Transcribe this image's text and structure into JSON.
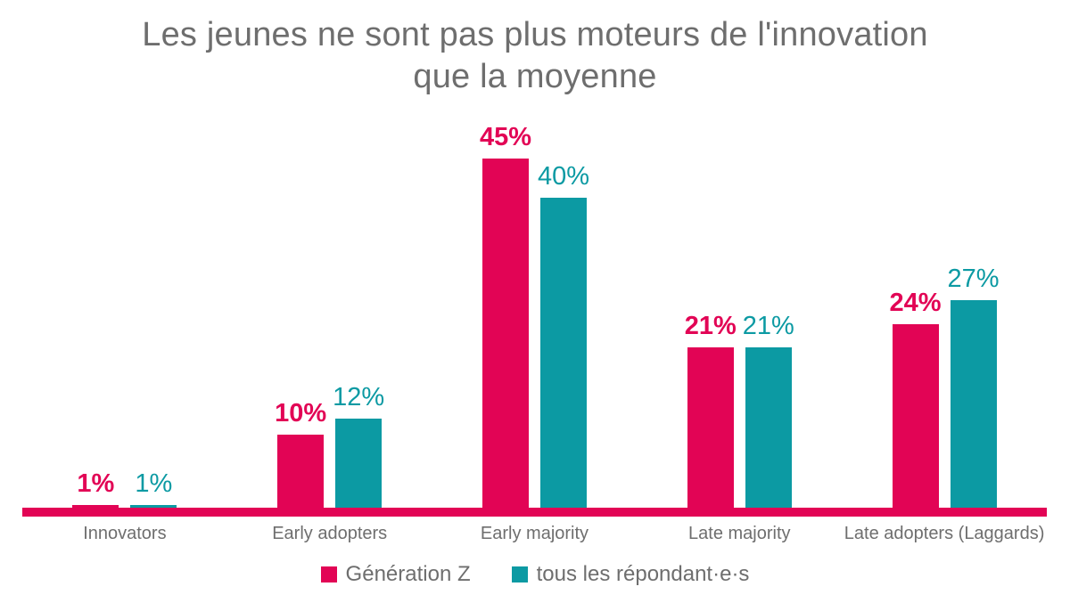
{
  "title_lines": [
    "Les jeunes ne sont pas plus moteurs de l'innovation",
    "que la moyenne"
  ],
  "chart_data": {
    "type": "bar",
    "title": "Les jeunes ne sont pas plus moteurs de l'innovation que la moyenne",
    "categories": [
      "Innovators",
      "Early adopters",
      "Early majority",
      "Late majority",
      "Late adopters (Laggards)"
    ],
    "series": [
      {
        "name": "Génération Z",
        "color": "#E20455",
        "values": [
          1,
          10,
          45,
          21,
          24
        ],
        "labels": [
          "1%",
          "10%",
          "45%",
          "21%",
          "24%"
        ]
      },
      {
        "name": "tous les répondant·e·s",
        "color": "#0C9AA3",
        "values": [
          1,
          12,
          40,
          21,
          27
        ],
        "labels": [
          "1%",
          "12%",
          "40%",
          "21%",
          "27%"
        ]
      }
    ],
    "value_suffix": "%",
    "ylim": [
      0,
      46
    ],
    "grid": false,
    "y_axis_visible": false,
    "legend_position": "bottom",
    "axis_line_color": "#E20455",
    "text_color": "#6E6E6E"
  }
}
